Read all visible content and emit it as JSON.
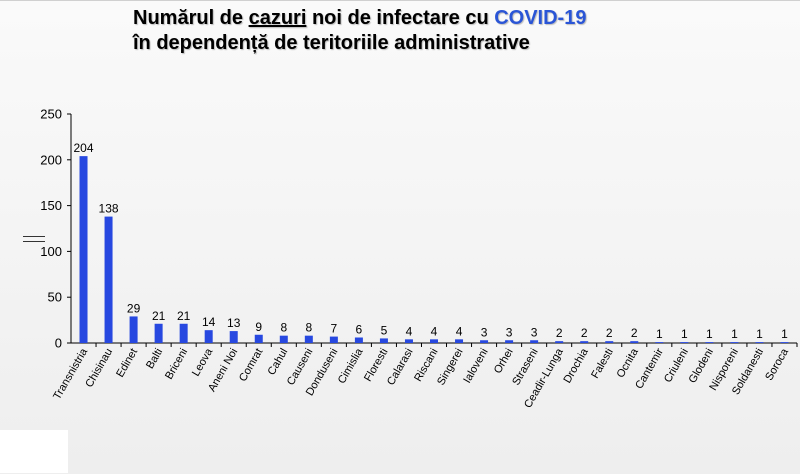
{
  "slide": {
    "title_part1": "Numărul de ",
    "title_part2": "cazuri",
    "title_part3": " noi de infectare cu ",
    "title_highlight": "COVID-19",
    "title_line2": "în dependență de teritoriile administrative"
  },
  "colors": {
    "bar": "#2748e0",
    "title_accent": "#2a55d6"
  },
  "chart_data": {
    "type": "bar",
    "title": "Numărul de cazuri noi de infectare cu COVID-19 în dependență de teritoriile administrative",
    "xlabel": "",
    "ylabel": "",
    "ylim": [
      0,
      250
    ],
    "yticks": [
      0,
      50,
      100,
      150,
      200,
      250
    ],
    "grid": false,
    "legend": "none",
    "categories": [
      "Transnistria",
      "Chisinau",
      "Edinet",
      "Balti",
      "Briceni",
      "Leova",
      "Aneni Noi",
      "Comrat",
      "Cahul",
      "Causeni",
      "Donduseni",
      "Cimislia",
      "Floresti",
      "Calarasi",
      "Riscani",
      "Singerei",
      "Ialoveni",
      "Orhei",
      "Straseni",
      "Ceadir-Lunga",
      "Drochia",
      "Falesti",
      "Ocnita",
      "Cantemir",
      "Criuleni",
      "Glodeni",
      "Nisporeni",
      "Soldanesti",
      "Soroca"
    ],
    "values": [
      204,
      138,
      29,
      21,
      21,
      14,
      13,
      9,
      8,
      8,
      7,
      6,
      5,
      4,
      4,
      4,
      3,
      3,
      3,
      2,
      2,
      2,
      2,
      1,
      1,
      1,
      1,
      1,
      1
    ]
  }
}
